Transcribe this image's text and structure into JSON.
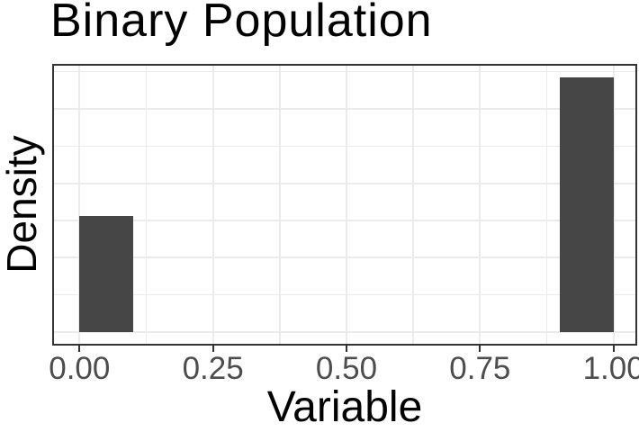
{
  "title": "Binary Population",
  "x_axis": {
    "label": "Variable"
  },
  "y_axis": {
    "label": "Density"
  },
  "colors": {
    "bar_fill": "#464646",
    "grid": "#ebebeb",
    "panel_border": "#333333",
    "tick_mark": "#333333",
    "tick_label": "#4d4d4d",
    "title_text": "#000000",
    "background": "#ffffff"
  },
  "chart_data": {
    "type": "bar",
    "subtype": "histogram",
    "title": "Binary Population",
    "xlabel": "Variable",
    "ylabel": "Density",
    "bars": [
      {
        "x0": 0.0,
        "x1": 0.1,
        "density": 3.12
      },
      {
        "x0": 0.9,
        "x1": 1.0,
        "density": 6.85
      }
    ],
    "x_breaks": [
      0,
      0.25,
      0.5,
      0.75,
      1.0
    ],
    "x_break_labels": [
      "0.00",
      "0.25",
      "0.50",
      "0.75",
      "1.00"
    ],
    "x_minor_breaks": [
      0.125,
      0.375,
      0.625,
      0.875
    ],
    "y_major_breaks": [
      0,
      2,
      4,
      6
    ],
    "y_minor_breaks": [
      1,
      3,
      5,
      7
    ],
    "y_tick_labels_shown": false,
    "xlim": [
      -0.0494,
      1.0427
    ],
    "ylim": [
      -0.341,
      7.186
    ],
    "grid": true,
    "legend": "none",
    "bar_color": "#464646"
  }
}
